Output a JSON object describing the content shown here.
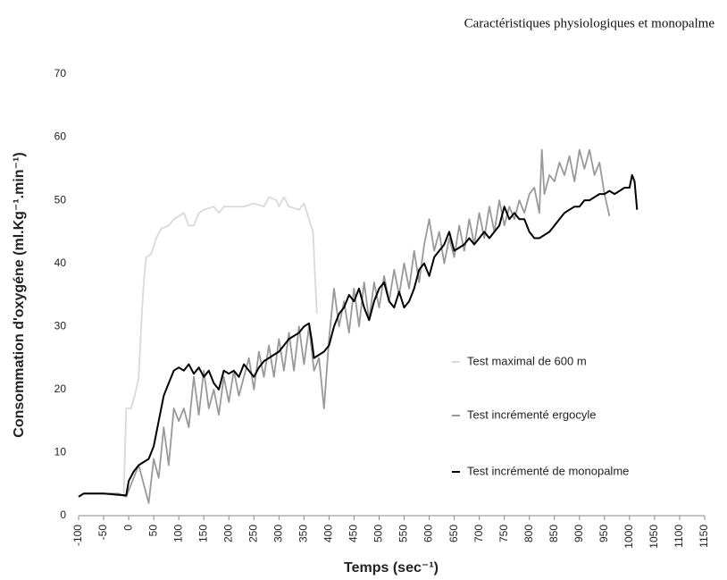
{
  "header": "Caractéristiques physiologiques et monopalme",
  "chart_data": {
    "type": "line",
    "xlabel": "Temps (sec⁻¹)",
    "ylabel": "Consommation d'oxygéne (ml.Kg⁻¹.min⁻¹)",
    "xlim": [
      -100,
      1150
    ],
    "xticks": [
      -100,
      -50,
      0,
      50,
      100,
      150,
      200,
      250,
      300,
      350,
      400,
      450,
      500,
      550,
      600,
      650,
      700,
      750,
      800,
      850,
      900,
      950,
      1000,
      1050,
      1100,
      1150
    ],
    "ylim": [
      0,
      70
    ],
    "yticks": [
      0,
      10,
      20,
      30,
      40,
      50,
      60,
      70
    ],
    "series": [
      {
        "name": "Test maximal de 600 m",
        "color": "#d9d9d9",
        "x": [
          -10,
          -5,
          5,
          15,
          20,
          25,
          30,
          35,
          45,
          55,
          65,
          80,
          90,
          100,
          110,
          120,
          130,
          140,
          150,
          170,
          180,
          190,
          210,
          230,
          250,
          270,
          280,
          295,
          300,
          310,
          320,
          340,
          350,
          360,
          368,
          372,
          376
        ],
        "values": [
          3,
          17,
          17,
          20,
          22,
          30,
          37,
          41,
          41.5,
          44,
          45.5,
          46,
          47,
          47.5,
          48,
          46,
          46,
          48,
          48.5,
          49,
          48,
          49,
          49,
          49,
          49.5,
          49,
          50.5,
          50,
          49,
          50.5,
          49,
          48.5,
          49.5,
          47,
          45,
          38,
          32
        ]
      },
      {
        "name": "Test incrémenté ergocyle",
        "color": "#999999",
        "x": [
          -100,
          -90,
          -70,
          -50,
          -20,
          -5,
          0,
          10,
          20,
          30,
          40,
          50,
          60,
          70,
          80,
          90,
          100,
          110,
          120,
          130,
          140,
          150,
          160,
          170,
          180,
          190,
          200,
          210,
          220,
          240,
          250,
          260,
          270,
          280,
          290,
          300,
          310,
          320,
          330,
          340,
          350,
          360,
          370,
          380,
          390,
          400,
          410,
          420,
          430,
          440,
          450,
          460,
          470,
          480,
          490,
          500,
          510,
          520,
          530,
          540,
          550,
          560,
          570,
          580,
          590,
          600,
          610,
          620,
          630,
          640,
          650,
          660,
          670,
          680,
          690,
          700,
          710,
          720,
          730,
          740,
          750,
          760,
          770,
          780,
          790,
          800,
          810,
          820,
          825,
          830,
          840,
          850,
          860,
          870,
          880,
          890,
          900,
          910,
          920,
          930,
          940,
          950,
          960
        ],
        "values": [
          3,
          3.5,
          3.5,
          3.5,
          3.5,
          3,
          4,
          6,
          8,
          5,
          2,
          9,
          6,
          14,
          8,
          17,
          15,
          17,
          14,
          22,
          16,
          23,
          17,
          20,
          16,
          22,
          18,
          23,
          19,
          25,
          20,
          26,
          22,
          27,
          22,
          28,
          23,
          29,
          23,
          30,
          24,
          30,
          23,
          25,
          17,
          28,
          36,
          30,
          34,
          29,
          36,
          30,
          37,
          31,
          37,
          33,
          38,
          34,
          39,
          35,
          40,
          36,
          42,
          37,
          43,
          47,
          42,
          45,
          40,
          44,
          41,
          46,
          42,
          47,
          43,
          48,
          44,
          49,
          45,
          50,
          46,
          49,
          47,
          50,
          48,
          51,
          52,
          48,
          58,
          51,
          54,
          53,
          56,
          54,
          57,
          53,
          58,
          55,
          58,
          54,
          56,
          51,
          47.5
        ]
      },
      {
        "name": "Test incrémenté de monopalme",
        "color": "#000000",
        "x": [
          -100,
          -90,
          -50,
          -20,
          -5,
          0,
          10,
          20,
          30,
          40,
          50,
          60,
          70,
          80,
          90,
          100,
          110,
          120,
          130,
          140,
          150,
          160,
          170,
          180,
          190,
          200,
          210,
          220,
          230,
          240,
          250,
          260,
          270,
          280,
          290,
          300,
          310,
          320,
          330,
          340,
          350,
          360,
          365,
          370,
          380,
          390,
          400,
          410,
          420,
          430,
          440,
          450,
          460,
          470,
          480,
          490,
          500,
          510,
          520,
          530,
          540,
          550,
          560,
          570,
          580,
          590,
          600,
          610,
          620,
          630,
          640,
          650,
          660,
          670,
          680,
          690,
          700,
          710,
          720,
          730,
          740,
          750,
          760,
          770,
          780,
          790,
          800,
          810,
          820,
          830,
          840,
          850,
          860,
          870,
          880,
          890,
          900,
          910,
          920,
          930,
          940,
          950,
          960,
          970,
          980,
          990,
          1000,
          1005,
          1010,
          1015
        ],
        "values": [
          3,
          3.5,
          3.5,
          3.3,
          3.2,
          5.5,
          7,
          8,
          8.5,
          9,
          11,
          15,
          19,
          21,
          23,
          23.5,
          23,
          24,
          22.5,
          23.5,
          22,
          23,
          21,
          20,
          23,
          22.5,
          23,
          22,
          24,
          23,
          22,
          23.5,
          24.5,
          25,
          25.5,
          26,
          27,
          28,
          28.5,
          29,
          30,
          30.5,
          28,
          25,
          25.5,
          26,
          27,
          30,
          32,
          33,
          35,
          34,
          36,
          33,
          31,
          34,
          36,
          37,
          34,
          33,
          35.5,
          33,
          34,
          36,
          39,
          40,
          38,
          41,
          42,
          43,
          45,
          42,
          42.5,
          43,
          44,
          43,
          44,
          45,
          44,
          45,
          46,
          49,
          47,
          48,
          47,
          47,
          45,
          44,
          44,
          44.5,
          45,
          46,
          47,
          48,
          48.5,
          49,
          49,
          50,
          50,
          50.5,
          51,
          51,
          51.5,
          51,
          51.5,
          52,
          52,
          54,
          53,
          48.5
        ]
      }
    ]
  }
}
